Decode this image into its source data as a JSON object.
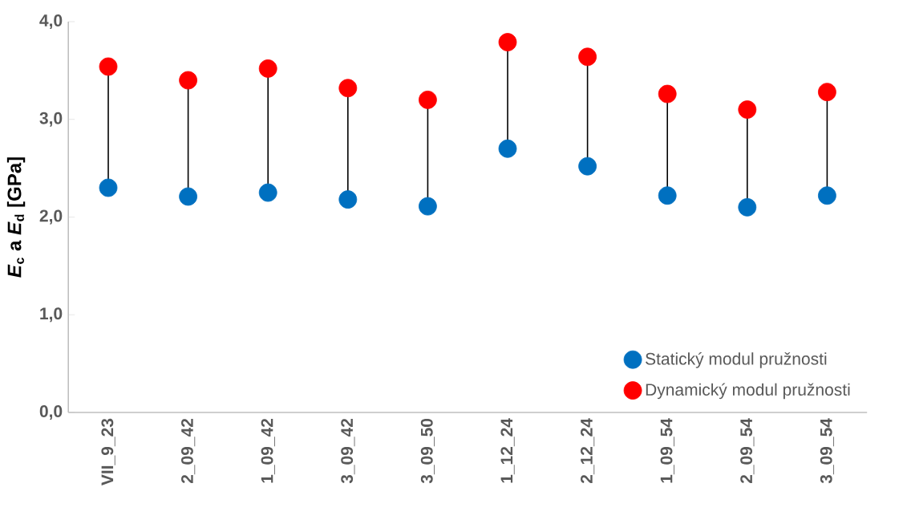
{
  "chart_data": {
    "type": "scatter",
    "ylabel": "*E*$_{c}$ a *E*$_{d}$ [GPa]",
    "categories": [
      "VII_9_23",
      "2_09_42",
      "1_09_42",
      "3_09_42",
      "3_09_50",
      "1_12_24",
      "2_12_24",
      "1_09_54",
      "2_09_54",
      "3_09_54"
    ],
    "series": [
      {
        "name": "Statický modul pružnosti",
        "color": "#0070c0",
        "values": [
          2.3,
          2.21,
          2.25,
          2.18,
          2.11,
          2.7,
          2.52,
          2.22,
          2.1,
          2.22
        ]
      },
      {
        "name": "Dynamický modul pružnosti",
        "color": "#ff0000",
        "values": [
          3.54,
          3.4,
          3.52,
          3.32,
          3.2,
          3.79,
          3.64,
          3.26,
          3.1,
          3.28
        ]
      }
    ],
    "ylim": [
      0,
      4
    ],
    "yticks": [
      {
        "value": 0,
        "label": "0,0"
      },
      {
        "value": 1,
        "label": "1,0"
      },
      {
        "value": 2,
        "label": "2,0"
      },
      {
        "value": 3,
        "label": "3,0"
      },
      {
        "value": 4,
        "label": "4,0"
      }
    ],
    "marker": "circle",
    "legend": "bottom right",
    "grid": false
  }
}
